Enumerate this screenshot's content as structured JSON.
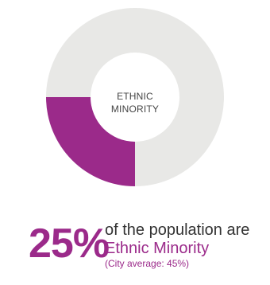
{
  "chart_data": {
    "type": "pie",
    "style": "donut",
    "center_label_lines": [
      "ETHNIC",
      "MINORITY"
    ],
    "slices": [
      {
        "label": "Ethnic Minority",
        "value": 25,
        "color": "#9b2a8a"
      },
      {
        "value": 75,
        "color": "#e8e8e6"
      }
    ]
  },
  "stat": {
    "value": "25%",
    "line1": "of the population are",
    "line2": "Ethnic Minority",
    "note": "(City average: 45%)"
  }
}
